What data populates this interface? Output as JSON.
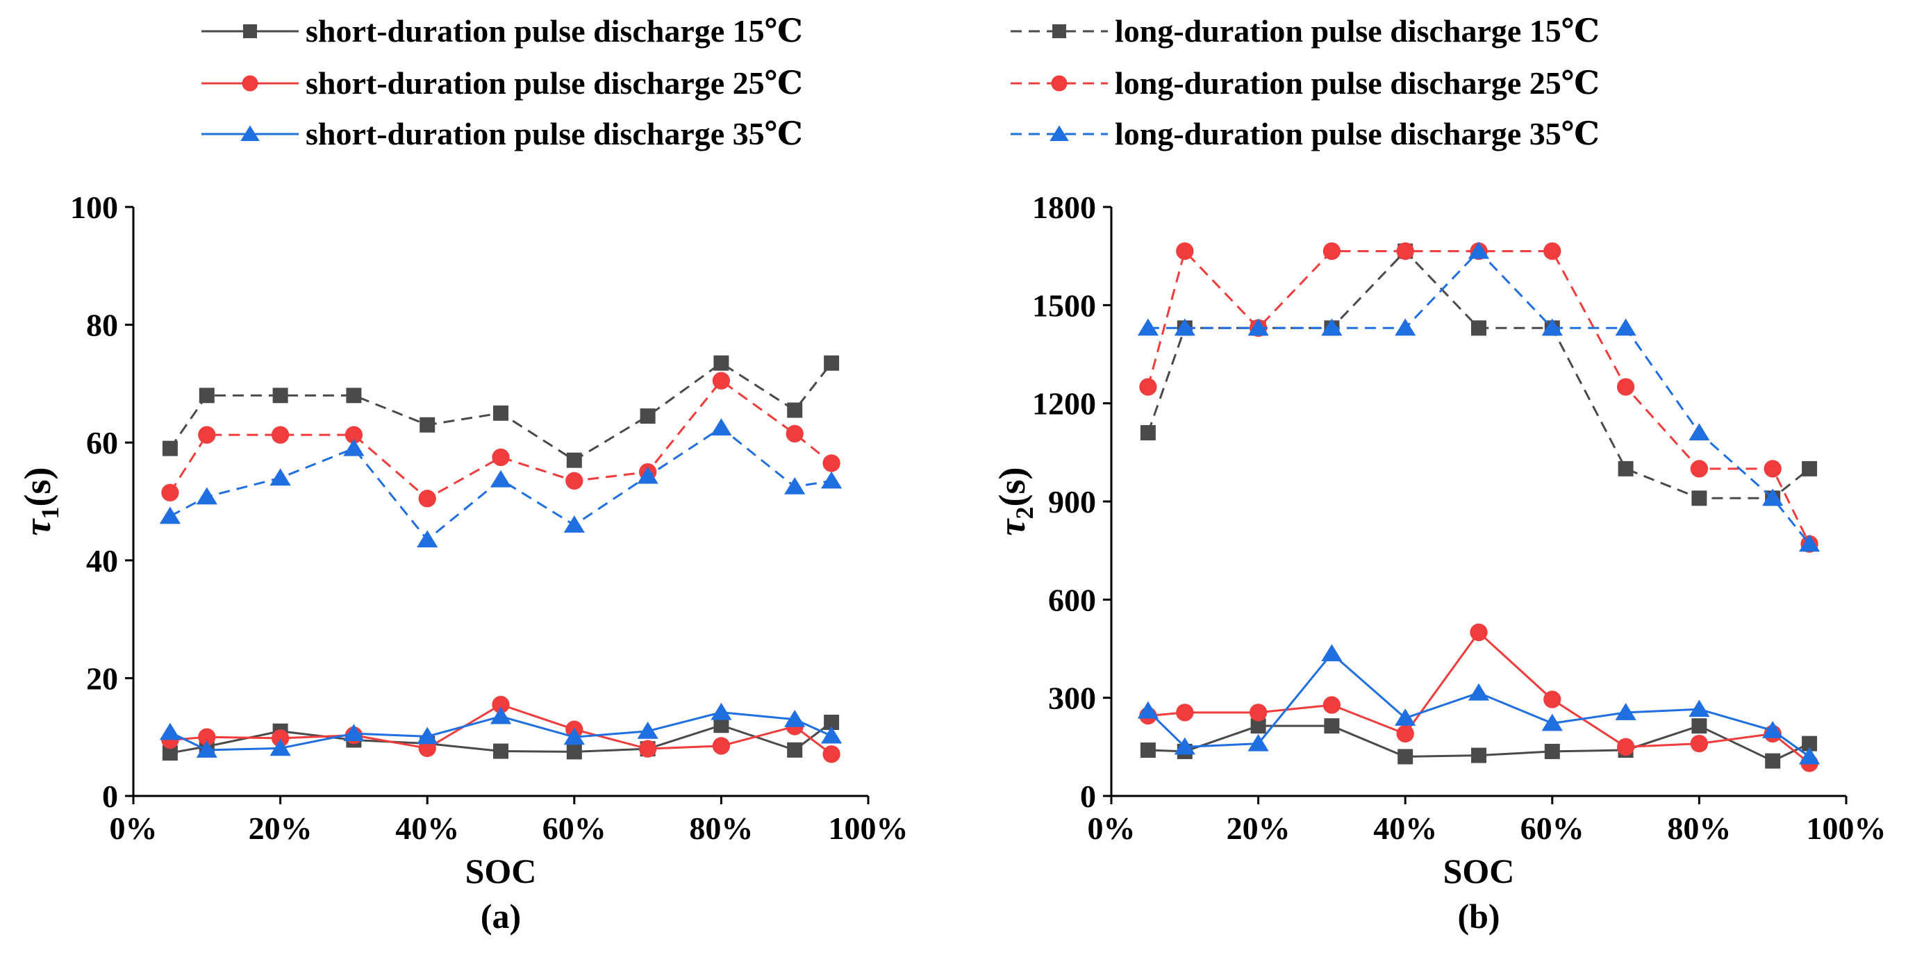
{
  "legend": [
    {
      "label": "short-duration pulse discharge 15℃",
      "color": "#4a4a4a",
      "dash": "solid",
      "marker": "square"
    },
    {
      "label": "long-duration pulse discharge 15℃",
      "color": "#4a4a4a",
      "dash": "dashed",
      "marker": "square"
    },
    {
      "label": "short-duration pulse discharge 25℃",
      "color": "#f03c3c",
      "dash": "solid",
      "marker": "circle"
    },
    {
      "label": "long-duration pulse discharge 25℃",
      "color": "#f03c3c",
      "dash": "dashed",
      "marker": "circle"
    },
    {
      "label": "short-duration pulse discharge 35℃",
      "color": "#1f6fe0",
      "dash": "solid",
      "marker": "triangle"
    },
    {
      "label": "long-duration pulse discharge 35℃",
      "color": "#1f6fe0",
      "dash": "dashed",
      "marker": "triangle"
    }
  ],
  "chart_data": [
    {
      "type": "line",
      "panel_label": "(a)",
      "xlabel": "SOC",
      "ylabel_symbol": "τ",
      "ylabel_sub": "1",
      "ylabel_unit": "(s)",
      "x": [
        5,
        10,
        20,
        30,
        40,
        50,
        60,
        70,
        80,
        90,
        95
      ],
      "xlim": [
        0,
        100
      ],
      "xticks": [
        0,
        20,
        40,
        60,
        80,
        100
      ],
      "xtick_labels": [
        "0%",
        "20%",
        "40%",
        "60%",
        "80%",
        "100%"
      ],
      "ylim": [
        0,
        100
      ],
      "yticks": [
        0,
        20,
        40,
        60,
        80,
        100
      ],
      "ytick_labels": [
        "0",
        "20",
        "40",
        "60",
        "80",
        "100"
      ],
      "series": [
        {
          "name": "long-duration pulse discharge 15℃",
          "color": "#4a4a4a",
          "dash": "dashed",
          "marker": "square",
          "values": [
            59,
            68,
            68,
            68,
            63,
            65,
            57,
            64.5,
            73.5,
            65.5,
            73.5
          ]
        },
        {
          "name": "long-duration pulse discharge 25℃",
          "color": "#f03c3c",
          "dash": "dashed",
          "marker": "circle",
          "values": [
            51.5,
            61.3,
            61.3,
            61.3,
            50.5,
            57.5,
            53.5,
            55,
            70.5,
            61.5,
            56.5
          ]
        },
        {
          "name": "long-duration pulse discharge 35℃",
          "color": "#1f6fe0",
          "dash": "dashed",
          "marker": "triangle",
          "values": [
            47.5,
            50.8,
            54,
            59,
            43.5,
            53.7,
            46,
            54.3,
            62.5,
            52.5,
            53.5
          ]
        },
        {
          "name": "short-duration pulse discharge 15℃",
          "color": "#4a4a4a",
          "dash": "solid",
          "marker": "square",
          "values": [
            7.3,
            8.4,
            11,
            9.5,
            8.9,
            7.6,
            7.5,
            8,
            12,
            7.8,
            12.5
          ]
        },
        {
          "name": "short-duration pulse discharge 25℃",
          "color": "#f03c3c",
          "dash": "solid",
          "marker": "circle",
          "values": [
            9.5,
            10,
            9.8,
            10.3,
            8.1,
            15.5,
            11.3,
            8,
            8.5,
            11.8,
            7.1
          ]
        },
        {
          "name": "short-duration pulse discharge 35℃",
          "color": "#1f6fe0",
          "dash": "solid",
          "marker": "triangle",
          "values": [
            10.8,
            7.8,
            8.1,
            10.6,
            10.1,
            13.5,
            10,
            11,
            14.2,
            13,
            10.2
          ]
        }
      ]
    },
    {
      "type": "line",
      "panel_label": "(b)",
      "xlabel": "SOC",
      "ylabel_symbol": "τ",
      "ylabel_sub": "2",
      "ylabel_unit": "(s)",
      "x": [
        5,
        10,
        20,
        30,
        40,
        50,
        60,
        70,
        80,
        90,
        95
      ],
      "xlim": [
        0,
        100
      ],
      "xticks": [
        0,
        20,
        40,
        60,
        80,
        100
      ],
      "xtick_labels": [
        "0%",
        "20%",
        "40%",
        "60%",
        "80%",
        "100%"
      ],
      "ylim": [
        0,
        1800
      ],
      "yticks": [
        0,
        300,
        600,
        900,
        1200,
        1500,
        1800
      ],
      "ytick_labels": [
        "0",
        "300",
        "600",
        "900",
        "1200",
        "1500",
        "1800"
      ],
      "series": [
        {
          "name": "long-duration pulse discharge 15℃",
          "color": "#4a4a4a",
          "dash": "dashed",
          "marker": "square",
          "values": [
            1110,
            1430,
            1430,
            1430,
            1665,
            1430,
            1430,
            1000,
            910,
            910,
            1000
          ]
        },
        {
          "name": "long-duration pulse discharge 25℃",
          "color": "#f03c3c",
          "dash": "dashed",
          "marker": "circle",
          "values": [
            1250,
            1665,
            1430,
            1665,
            1665,
            1665,
            1665,
            1250,
            1000,
            1000,
            770
          ]
        },
        {
          "name": "long-duration pulse discharge 35℃",
          "color": "#1f6fe0",
          "dash": "dashed",
          "marker": "triangle",
          "values": [
            1430,
            1430,
            1430,
            1430,
            1430,
            1665,
            1430,
            1430,
            1110,
            910,
            770
          ]
        },
        {
          "name": "short-duration pulse discharge 15℃",
          "color": "#4a4a4a",
          "dash": "solid",
          "marker": "square",
          "values": [
            140,
            136,
            214,
            214,
            120,
            124,
            136,
            140,
            214,
            107,
            160
          ]
        },
        {
          "name": "short-duration pulse discharge 25℃",
          "color": "#f03c3c",
          "dash": "solid",
          "marker": "circle",
          "values": [
            245,
            255,
            255,
            278,
            190,
            500,
            295,
            150,
            160,
            190,
            100
          ]
        },
        {
          "name": "short-duration pulse discharge 35℃",
          "color": "#1f6fe0",
          "dash": "solid",
          "marker": "triangle",
          "values": [
            260,
            150,
            160,
            435,
            238,
            315,
            222,
            255,
            265,
            200,
            120
          ]
        }
      ]
    }
  ]
}
